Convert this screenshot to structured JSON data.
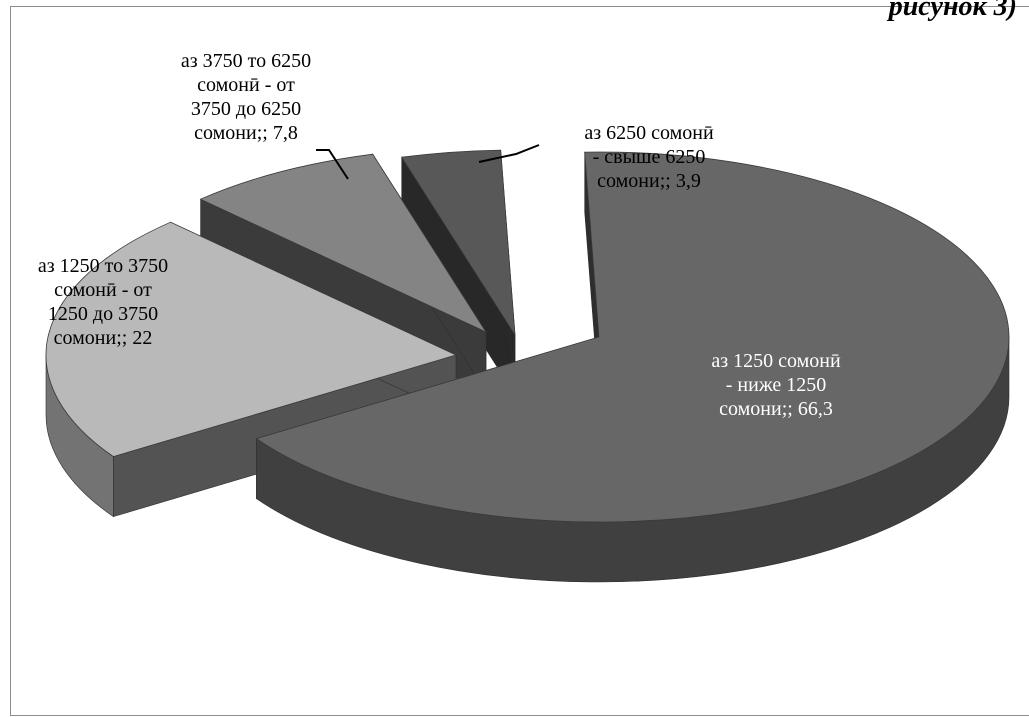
{
  "corner_text": "рисунок 3)",
  "chart_data": {
    "type": "pie",
    "title": "",
    "series": [
      {
        "values": [
          66.3,
          22,
          7.8,
          3.9
        ]
      }
    ],
    "slices": [
      {
        "label_lines": [
          "аз 1250 сомонӣ",
          "- ниже 1250",
          "сомони;; 66,3"
        ],
        "value": 66.3,
        "color": "#676767"
      },
      {
        "label_lines": [
          "аз 1250 то 3750",
          "сомонӣ - от",
          "1250 до 3750",
          "сомони;; 22"
        ],
        "value": 22,
        "color": "#b9b9b9"
      },
      {
        "label_lines": [
          "аз 3750 то 6250",
          "сомонӣ - от",
          "3750 до 6250",
          "сомони;; 7,8"
        ],
        "value": 7.8,
        "color": "#848484"
      },
      {
        "label_lines": [
          "аз 6250 сомонӣ",
          "- свыше 6250",
          "сомони;; 3,9"
        ],
        "value": 3.9,
        "color": "#585858"
      }
    ],
    "legend": "none",
    "style": "3d-exploded-pie"
  }
}
